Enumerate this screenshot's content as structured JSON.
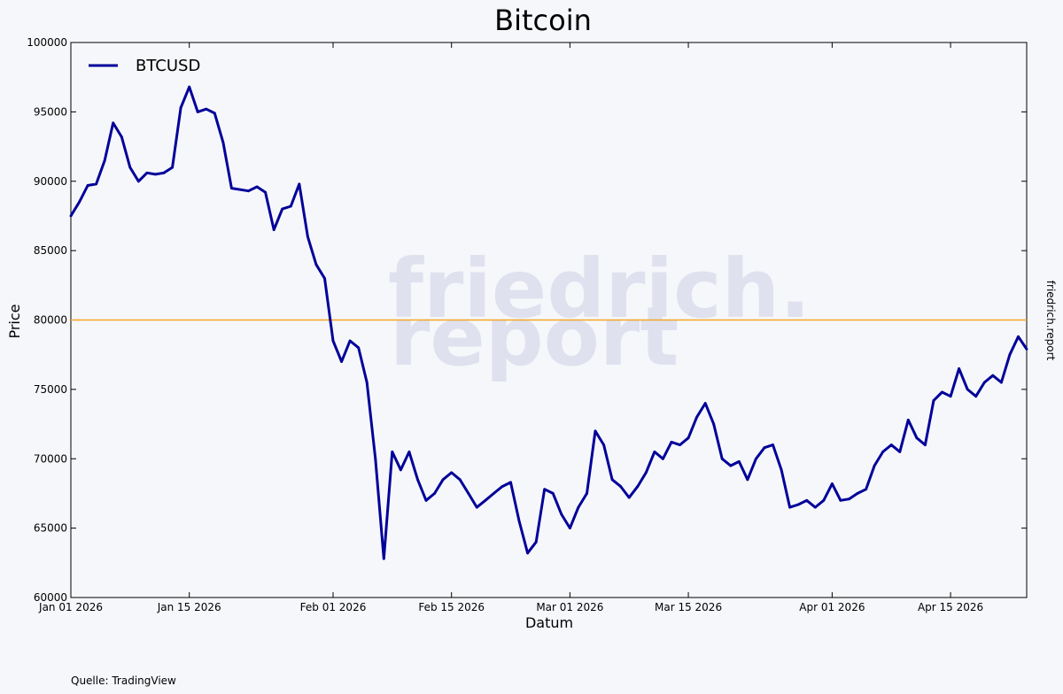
{
  "chart_data": {
    "type": "line",
    "title": "Bitcoin",
    "xlabel": "Datum",
    "ylabel": "Price",
    "ylim": [
      60000,
      100000
    ],
    "yticks": [
      60000,
      65000,
      70000,
      75000,
      80000,
      85000,
      90000,
      95000,
      100000
    ],
    "xlim": [
      "2026-01-01",
      "2026-04-24"
    ],
    "xticks": [
      {
        "date": "2026-01-01",
        "label": "Jan 01 2026"
      },
      {
        "date": "2026-01-15",
        "label": "Jan 15 2026"
      },
      {
        "date": "2026-02-01",
        "label": "Feb 01 2026"
      },
      {
        "date": "2026-02-15",
        "label": "Feb 15 2026"
      },
      {
        "date": "2026-03-01",
        "label": "Mar 01 2026"
      },
      {
        "date": "2026-03-15",
        "label": "Mar 15 2026"
      },
      {
        "date": "2026-04-01",
        "label": "Apr 01 2026"
      },
      {
        "date": "2026-04-15",
        "label": "Apr 15 2026"
      }
    ],
    "grid": false,
    "legend_position": "top-left",
    "reference_line": {
      "y": 80000,
      "color": "#f5a623"
    },
    "series": [
      {
        "name": "BTCUSD",
        "color": "#00009a",
        "points": [
          [
            "2026-01-01",
            87500
          ],
          [
            "2026-01-02",
            88500
          ],
          [
            "2026-01-03",
            89700
          ],
          [
            "2026-01-04",
            89800
          ],
          [
            "2026-01-05",
            91500
          ],
          [
            "2026-01-06",
            94200
          ],
          [
            "2026-01-07",
            93200
          ],
          [
            "2026-01-08",
            91000
          ],
          [
            "2026-01-09",
            90000
          ],
          [
            "2026-01-10",
            90600
          ],
          [
            "2026-01-11",
            90500
          ],
          [
            "2026-01-12",
            90600
          ],
          [
            "2026-01-13",
            91000
          ],
          [
            "2026-01-14",
            95300
          ],
          [
            "2026-01-15",
            96800
          ],
          [
            "2026-01-16",
            95000
          ],
          [
            "2026-01-17",
            95200
          ],
          [
            "2026-01-18",
            94900
          ],
          [
            "2026-01-19",
            92800
          ],
          [
            "2026-01-20",
            89500
          ],
          [
            "2026-01-21",
            89400
          ],
          [
            "2026-01-22",
            89300
          ],
          [
            "2026-01-23",
            89600
          ],
          [
            "2026-01-24",
            89200
          ],
          [
            "2026-01-25",
            86500
          ],
          [
            "2026-01-26",
            88000
          ],
          [
            "2026-01-27",
            88200
          ],
          [
            "2026-01-28",
            89800
          ],
          [
            "2026-01-29",
            86000
          ],
          [
            "2026-01-30",
            84000
          ],
          [
            "2026-01-31",
            83000
          ],
          [
            "2026-02-01",
            78500
          ],
          [
            "2026-02-02",
            77000
          ],
          [
            "2026-02-03",
            78500
          ],
          [
            "2026-02-04",
            78000
          ],
          [
            "2026-02-05",
            75500
          ],
          [
            "2026-02-06",
            70000
          ],
          [
            "2026-02-07",
            62800
          ],
          [
            "2026-02-08",
            70500
          ],
          [
            "2026-02-09",
            69200
          ],
          [
            "2026-02-10",
            70500
          ],
          [
            "2026-02-11",
            68500
          ],
          [
            "2026-02-12",
            67000
          ],
          [
            "2026-02-13",
            67500
          ],
          [
            "2026-02-14",
            68500
          ],
          [
            "2026-02-15",
            69000
          ],
          [
            "2026-02-16",
            68500
          ],
          [
            "2026-02-17",
            67500
          ],
          [
            "2026-02-18",
            66500
          ],
          [
            "2026-02-19",
            67000
          ],
          [
            "2026-02-20",
            67500
          ],
          [
            "2026-02-21",
            68000
          ],
          [
            "2026-02-22",
            68300
          ],
          [
            "2026-02-23",
            65500
          ],
          [
            "2026-02-24",
            63200
          ],
          [
            "2026-02-25",
            64000
          ],
          [
            "2026-02-26",
            67800
          ],
          [
            "2026-02-27",
            67500
          ],
          [
            "2026-02-28",
            66000
          ],
          [
            "2026-03-01",
            65000
          ],
          [
            "2026-03-02",
            66500
          ],
          [
            "2026-03-03",
            67500
          ],
          [
            "2026-03-04",
            72000
          ],
          [
            "2026-03-05",
            71000
          ],
          [
            "2026-03-06",
            68500
          ],
          [
            "2026-03-07",
            68000
          ],
          [
            "2026-03-08",
            67200
          ],
          [
            "2026-03-09",
            68000
          ],
          [
            "2026-03-10",
            69000
          ],
          [
            "2026-03-11",
            70500
          ],
          [
            "2026-03-12",
            70000
          ],
          [
            "2026-03-13",
            71200
          ],
          [
            "2026-03-14",
            71000
          ],
          [
            "2026-03-15",
            71500
          ],
          [
            "2026-03-16",
            73000
          ],
          [
            "2026-03-17",
            74000
          ],
          [
            "2026-03-18",
            72500
          ],
          [
            "2026-03-19",
            70000
          ],
          [
            "2026-03-20",
            69500
          ],
          [
            "2026-03-21",
            69800
          ],
          [
            "2026-03-22",
            68500
          ],
          [
            "2026-03-23",
            70000
          ],
          [
            "2026-03-24",
            70800
          ],
          [
            "2026-03-25",
            71000
          ],
          [
            "2026-03-26",
            69200
          ],
          [
            "2026-03-27",
            66500
          ],
          [
            "2026-03-28",
            66700
          ],
          [
            "2026-03-29",
            67000
          ],
          [
            "2026-03-30",
            66500
          ],
          [
            "2026-03-31",
            67000
          ],
          [
            "2026-04-01",
            68200
          ],
          [
            "2026-04-02",
            67000
          ],
          [
            "2026-04-03",
            67100
          ],
          [
            "2026-04-04",
            67500
          ],
          [
            "2026-04-05",
            67800
          ],
          [
            "2026-04-06",
            69500
          ],
          [
            "2026-04-07",
            70500
          ],
          [
            "2026-04-08",
            71000
          ],
          [
            "2026-04-09",
            70500
          ],
          [
            "2026-04-10",
            72800
          ],
          [
            "2026-04-11",
            71500
          ],
          [
            "2026-04-12",
            71000
          ],
          [
            "2026-04-13",
            74200
          ],
          [
            "2026-04-14",
            74800
          ],
          [
            "2026-04-15",
            74500
          ],
          [
            "2026-04-16",
            76500
          ],
          [
            "2026-04-17",
            75000
          ],
          [
            "2026-04-18",
            74500
          ],
          [
            "2026-04-19",
            75500
          ],
          [
            "2026-04-20",
            76000
          ],
          [
            "2026-04-21",
            75500
          ],
          [
            "2026-04-22",
            77500
          ],
          [
            "2026-04-23",
            78800
          ],
          [
            "2026-04-24",
            77900
          ]
        ]
      }
    ]
  },
  "watermark": {
    "line1": "friedrich.",
    "line2": "report",
    "color": "#dfe1ef"
  },
  "side_label": "friedrich.report",
  "source": "Quelle: TradingView"
}
